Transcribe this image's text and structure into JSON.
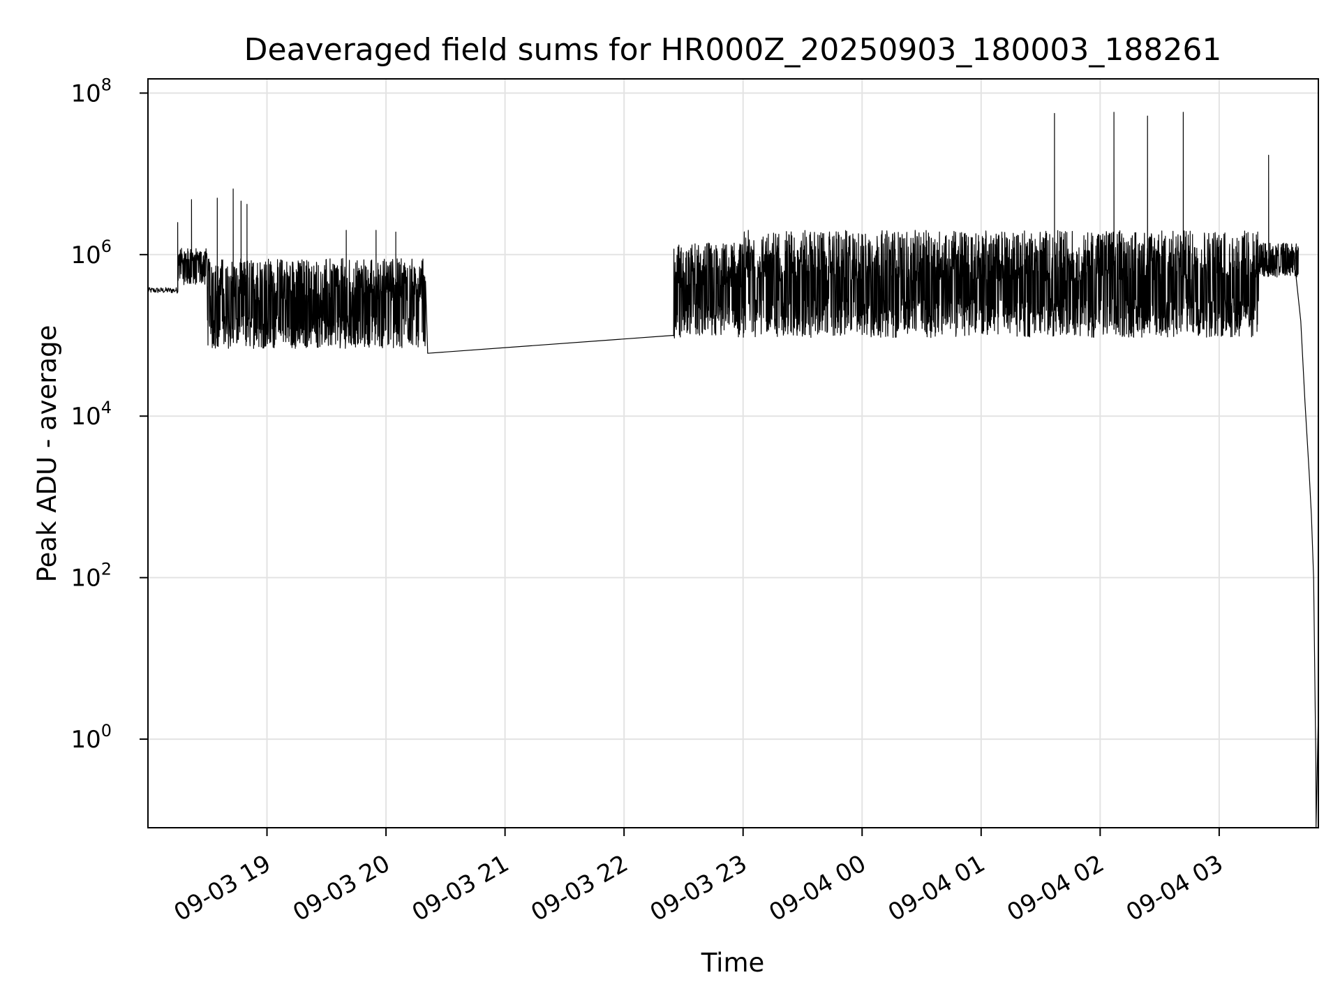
{
  "chart_data": {
    "type": "line",
    "title": "Deaveraged field sums for HR000Z_20250903_180003_188261",
    "xlabel": "Time",
    "ylabel": "Peak ADU - average",
    "y_scale": "log",
    "grid": true,
    "xlim": [
      "2025-09-03 18:00",
      "2025-09-04 03:50"
    ],
    "ylim": [
      0.08,
      150000000
    ],
    "x_ticks": [
      {
        "time": "2025-09-03 19:00",
        "label": "09-03 19"
      },
      {
        "time": "2025-09-03 20:00",
        "label": "09-03 20"
      },
      {
        "time": "2025-09-03 21:00",
        "label": "09-03 21"
      },
      {
        "time": "2025-09-03 22:00",
        "label": "09-03 22"
      },
      {
        "time": "2025-09-03 23:00",
        "label": "09-03 23"
      },
      {
        "time": "2025-09-04 00:00",
        "label": "09-04 00"
      },
      {
        "time": "2025-09-04 01:00",
        "label": "09-04 01"
      },
      {
        "time": "2025-09-04 02:00",
        "label": "09-04 02"
      },
      {
        "time": "2025-09-04 03:00",
        "label": "09-04 03"
      }
    ],
    "y_ticks": [
      {
        "value": 1,
        "base": "10",
        "exp": "0"
      },
      {
        "value": 100,
        "base": "10",
        "exp": "2"
      },
      {
        "value": 10000,
        "base": "10",
        "exp": "4"
      },
      {
        "value": 1000000,
        "base": "10",
        "exp": "6"
      },
      {
        "value": 100000000,
        "base": "10",
        "exp": "8"
      }
    ],
    "segments": [
      {
        "time_range": [
          "2025-09-03 18:00",
          "2025-09-03 18:15"
        ],
        "low": 300000,
        "high": 420000
      },
      {
        "time_range": [
          "2025-09-03 18:15",
          "2025-09-03 18:30"
        ],
        "low": 400000,
        "high": 1200000
      },
      {
        "time_range": [
          "2025-09-03 18:30",
          "2025-09-03 20:20"
        ],
        "low": 60000,
        "high": 900000
      },
      {
        "time_range": [
          "2025-09-03 22:25",
          "2025-09-03 23:00"
        ],
        "low": 80000,
        "high": 1400000
      },
      {
        "time_range": [
          "2025-09-03 23:00",
          "2025-09-04 03:20"
        ],
        "low": 80000,
        "high": 2000000
      },
      {
        "time_range": [
          "2025-09-04 03:20",
          "2025-09-04 03:40"
        ],
        "low": 500000,
        "high": 1400000
      }
    ],
    "gap": {
      "from": {
        "time": "2025-09-03 20:21",
        "value": 60000
      },
      "to": {
        "time": "2025-09-03 22:25",
        "value": 100000
      }
    },
    "spikes": [
      {
        "time": "2025-09-03 18:15",
        "value": 2500000
      },
      {
        "time": "2025-09-03 18:22",
        "value": 4800000
      },
      {
        "time": "2025-09-03 18:35",
        "value": 5000000
      },
      {
        "time": "2025-09-03 18:43",
        "value": 6500000
      },
      {
        "time": "2025-09-03 18:47",
        "value": 4600000
      },
      {
        "time": "2025-09-03 18:50",
        "value": 4200000
      },
      {
        "time": "2025-09-03 19:40",
        "value": 2000000
      },
      {
        "time": "2025-09-03 19:55",
        "value": 2000000
      },
      {
        "time": "2025-09-03 20:05",
        "value": 1900000
      },
      {
        "time": "2025-09-04 01:37",
        "value": 56000000
      },
      {
        "time": "2025-09-04 02:07",
        "value": 58000000
      },
      {
        "time": "2025-09-04 02:24",
        "value": 52000000
      },
      {
        "time": "2025-09-04 02:42",
        "value": 58000000
      },
      {
        "time": "2025-09-04 03:25",
        "value": 17000000
      }
    ],
    "decay": [
      {
        "time": "2025-09-04 03:38",
        "value": 800000
      },
      {
        "time": "2025-09-04 03:41",
        "value": 150000
      },
      {
        "time": "2025-09-04 03:43",
        "value": 15000
      },
      {
        "time": "2025-09-04 03:45",
        "value": 2000
      },
      {
        "time": "2025-09-04 03:46",
        "value": 600
      },
      {
        "time": "2025-09-04 03:47",
        "value": 100
      },
      {
        "time": "2025-09-04 03:48",
        "value": 0.5
      },
      {
        "time": "2025-09-04 03:48",
        "value": 0.08
      },
      {
        "time": "2025-09-04 03:49",
        "value": 2
      },
      {
        "time": "2025-09-04 03:49",
        "value": 0.08
      }
    ]
  }
}
